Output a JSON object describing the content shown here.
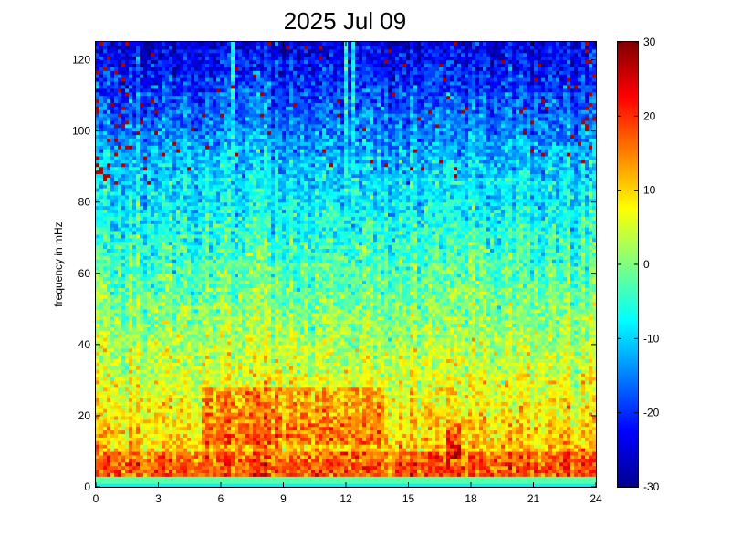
{
  "chart_data": {
    "type": "heatmap",
    "title": "2025 Jul 09",
    "xlabel": "",
    "ylabel": "frequency in mHz",
    "xlim": [
      0,
      24
    ],
    "ylim": [
      0,
      125
    ],
    "x_ticks": [
      "0",
      "3",
      "6",
      "9",
      "12",
      "15",
      "18",
      "21",
      "24"
    ],
    "y_ticks": [
      "0",
      "20",
      "40",
      "60",
      "80",
      "100",
      "120"
    ],
    "colorbar": {
      "range": [
        -30,
        30
      ],
      "ticks": [
        "30",
        "20",
        "10",
        "0",
        "-10",
        "-20",
        "-30"
      ],
      "colormap": "jet"
    },
    "features": {
      "high_power_band": {
        "x": [
          5,
          13.8
        ],
        "y": [
          12,
          28
        ],
        "level": 22
      },
      "vertical_lines": [
        6.5,
        12.0,
        12.4
      ]
    }
  }
}
